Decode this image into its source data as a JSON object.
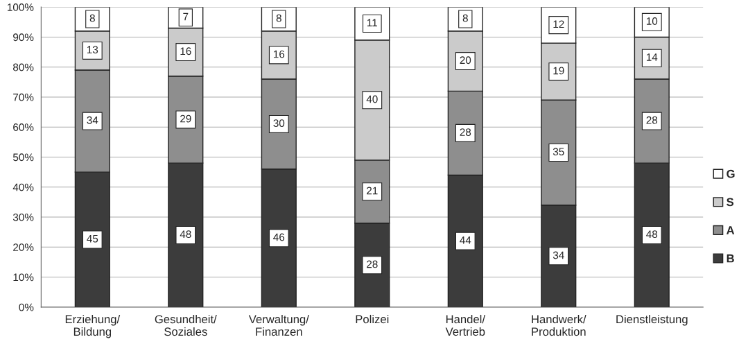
{
  "chart_data": {
    "type": "bar",
    "stacked": true,
    "categories": [
      "Erziehung/\nBildung",
      "Gesundheit/\nSoziales",
      "Verwaltung/\nFinanzen",
      "Polizei",
      "Handel/\nVertrieb",
      "Handwerk/\nProduktion",
      "Dienstleistung"
    ],
    "series": [
      {
        "name": "B",
        "color": "#3c3c3c",
        "values": [
          45,
          48,
          46,
          28,
          44,
          34,
          48
        ]
      },
      {
        "name": "A",
        "color": "#8e8e8e",
        "values": [
          34,
          29,
          30,
          21,
          28,
          35,
          28
        ]
      },
      {
        "name": "S",
        "color": "#cbcbcb",
        "values": [
          13,
          16,
          16,
          40,
          20,
          19,
          14
        ]
      },
      {
        "name": "G",
        "color": "#ffffff",
        "values": [
          8,
          7,
          8,
          11,
          8,
          12,
          10
        ]
      }
    ],
    "ylim": [
      0,
      100
    ],
    "yticks": [
      {
        "value": 0,
        "label": "0%"
      },
      {
        "value": 10,
        "label": "10%"
      },
      {
        "value": 20,
        "label": "20%"
      },
      {
        "value": 30,
        "label": "30%"
      },
      {
        "value": 40,
        "label": "40%"
      },
      {
        "value": 50,
        "label": "50%"
      },
      {
        "value": 60,
        "label": "60%"
      },
      {
        "value": 70,
        "label": "70%"
      },
      {
        "value": 80,
        "label": "80%"
      },
      {
        "value": 90,
        "label": "90%"
      },
      {
        "value": 100,
        "label": "100%"
      }
    ],
    "grid": "y",
    "legend": "right",
    "data_labels": true
  }
}
